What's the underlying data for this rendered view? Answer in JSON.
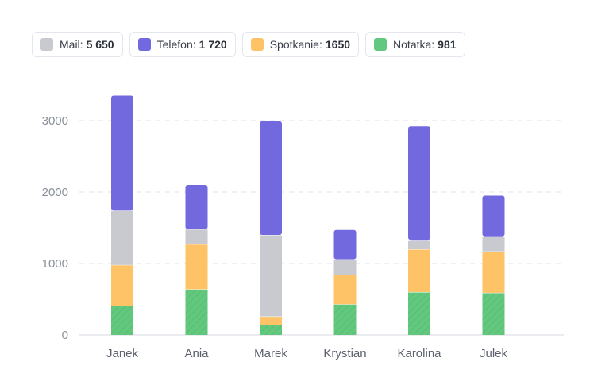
{
  "legend": {
    "items": [
      {
        "name": "Mail:",
        "value": "5 650",
        "color": "#c9cacf"
      },
      {
        "name": "Telefon:",
        "value": "1 720",
        "color": "#7369df"
      },
      {
        "name": "Spotkanie:",
        "value": "1650",
        "color": "#fdc366"
      },
      {
        "name": "Notatka:",
        "value": "981",
        "color": "#62c87e"
      }
    ]
  },
  "chart_data": {
    "type": "bar",
    "stacked": true,
    "categories": [
      "Janek",
      "Ania",
      "Marek",
      "Krystian",
      "Karolina",
      "Julek"
    ],
    "series": [
      {
        "name": "Notatka",
        "color": "#62c87e",
        "values": [
          410,
          640,
          140,
          430,
          600,
          590
        ]
      },
      {
        "name": "Spotkanie",
        "color": "#fdc366",
        "values": [
          570,
          630,
          120,
          410,
          600,
          580
        ]
      },
      {
        "name": "Mail",
        "color": "#c9cacf",
        "values": [
          760,
          210,
          1140,
          220,
          130,
          210
        ]
      },
      {
        "name": "Telefon",
        "color": "#7369df",
        "values": [
          1610,
          620,
          1590,
          410,
          1590,
          570
        ]
      }
    ],
    "ylim": [
      0,
      3500
    ],
    "yticks": [
      0,
      1000,
      2000,
      3000
    ],
    "grid": true,
    "legend_position": "top-left"
  }
}
